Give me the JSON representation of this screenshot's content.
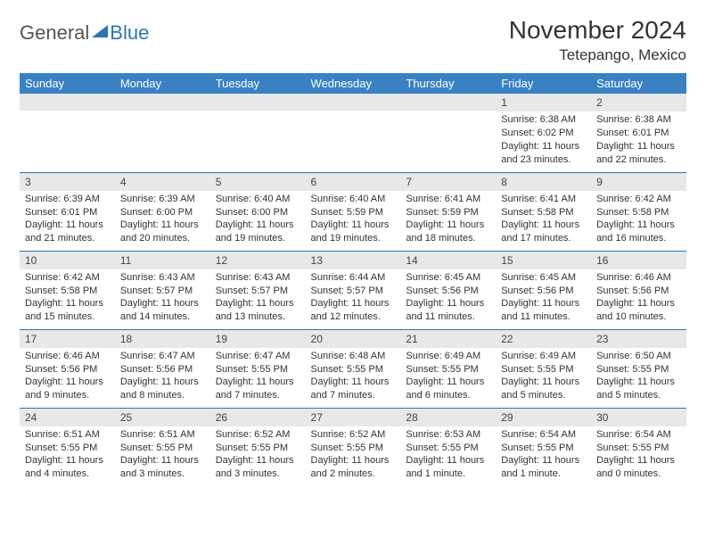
{
  "brand": {
    "part1": "General",
    "part2": "Blue"
  },
  "title": "November 2024",
  "location": "Tetepango, Mexico",
  "colors": {
    "header_bg": "#3a81c4",
    "border": "#2e75b6",
    "daynum_bg": "#e8e8e8",
    "text": "#333333",
    "brand_blue": "#2e75b6"
  },
  "weekdays": [
    "Sunday",
    "Monday",
    "Tuesday",
    "Wednesday",
    "Thursday",
    "Friday",
    "Saturday"
  ],
  "weeks": [
    [
      null,
      null,
      null,
      null,
      null,
      {
        "n": "1",
        "sunrise": "6:38 AM",
        "sunset": "6:02 PM",
        "daylight": "11 hours and 23 minutes."
      },
      {
        "n": "2",
        "sunrise": "6:38 AM",
        "sunset": "6:01 PM",
        "daylight": "11 hours and 22 minutes."
      }
    ],
    [
      {
        "n": "3",
        "sunrise": "6:39 AM",
        "sunset": "6:01 PM",
        "daylight": "11 hours and 21 minutes."
      },
      {
        "n": "4",
        "sunrise": "6:39 AM",
        "sunset": "6:00 PM",
        "daylight": "11 hours and 20 minutes."
      },
      {
        "n": "5",
        "sunrise": "6:40 AM",
        "sunset": "6:00 PM",
        "daylight": "11 hours and 19 minutes."
      },
      {
        "n": "6",
        "sunrise": "6:40 AM",
        "sunset": "5:59 PM",
        "daylight": "11 hours and 19 minutes."
      },
      {
        "n": "7",
        "sunrise": "6:41 AM",
        "sunset": "5:59 PM",
        "daylight": "11 hours and 18 minutes."
      },
      {
        "n": "8",
        "sunrise": "6:41 AM",
        "sunset": "5:58 PM",
        "daylight": "11 hours and 17 minutes."
      },
      {
        "n": "9",
        "sunrise": "6:42 AM",
        "sunset": "5:58 PM",
        "daylight": "11 hours and 16 minutes."
      }
    ],
    [
      {
        "n": "10",
        "sunrise": "6:42 AM",
        "sunset": "5:58 PM",
        "daylight": "11 hours and 15 minutes."
      },
      {
        "n": "11",
        "sunrise": "6:43 AM",
        "sunset": "5:57 PM",
        "daylight": "11 hours and 14 minutes."
      },
      {
        "n": "12",
        "sunrise": "6:43 AM",
        "sunset": "5:57 PM",
        "daylight": "11 hours and 13 minutes."
      },
      {
        "n": "13",
        "sunrise": "6:44 AM",
        "sunset": "5:57 PM",
        "daylight": "11 hours and 12 minutes."
      },
      {
        "n": "14",
        "sunrise": "6:45 AM",
        "sunset": "5:56 PM",
        "daylight": "11 hours and 11 minutes."
      },
      {
        "n": "15",
        "sunrise": "6:45 AM",
        "sunset": "5:56 PM",
        "daylight": "11 hours and 11 minutes."
      },
      {
        "n": "16",
        "sunrise": "6:46 AM",
        "sunset": "5:56 PM",
        "daylight": "11 hours and 10 minutes."
      }
    ],
    [
      {
        "n": "17",
        "sunrise": "6:46 AM",
        "sunset": "5:56 PM",
        "daylight": "11 hours and 9 minutes."
      },
      {
        "n": "18",
        "sunrise": "6:47 AM",
        "sunset": "5:56 PM",
        "daylight": "11 hours and 8 minutes."
      },
      {
        "n": "19",
        "sunrise": "6:47 AM",
        "sunset": "5:55 PM",
        "daylight": "11 hours and 7 minutes."
      },
      {
        "n": "20",
        "sunrise": "6:48 AM",
        "sunset": "5:55 PM",
        "daylight": "11 hours and 7 minutes."
      },
      {
        "n": "21",
        "sunrise": "6:49 AM",
        "sunset": "5:55 PM",
        "daylight": "11 hours and 6 minutes."
      },
      {
        "n": "22",
        "sunrise": "6:49 AM",
        "sunset": "5:55 PM",
        "daylight": "11 hours and 5 minutes."
      },
      {
        "n": "23",
        "sunrise": "6:50 AM",
        "sunset": "5:55 PM",
        "daylight": "11 hours and 5 minutes."
      }
    ],
    [
      {
        "n": "24",
        "sunrise": "6:51 AM",
        "sunset": "5:55 PM",
        "daylight": "11 hours and 4 minutes."
      },
      {
        "n": "25",
        "sunrise": "6:51 AM",
        "sunset": "5:55 PM",
        "daylight": "11 hours and 3 minutes."
      },
      {
        "n": "26",
        "sunrise": "6:52 AM",
        "sunset": "5:55 PM",
        "daylight": "11 hours and 3 minutes."
      },
      {
        "n": "27",
        "sunrise": "6:52 AM",
        "sunset": "5:55 PM",
        "daylight": "11 hours and 2 minutes."
      },
      {
        "n": "28",
        "sunrise": "6:53 AM",
        "sunset": "5:55 PM",
        "daylight": "11 hours and 1 minute."
      },
      {
        "n": "29",
        "sunrise": "6:54 AM",
        "sunset": "5:55 PM",
        "daylight": "11 hours and 1 minute."
      },
      {
        "n": "30",
        "sunrise": "6:54 AM",
        "sunset": "5:55 PM",
        "daylight": "11 hours and 0 minutes."
      }
    ]
  ],
  "labels": {
    "sunrise": "Sunrise: ",
    "sunset": "Sunset: ",
    "daylight": "Daylight: "
  }
}
